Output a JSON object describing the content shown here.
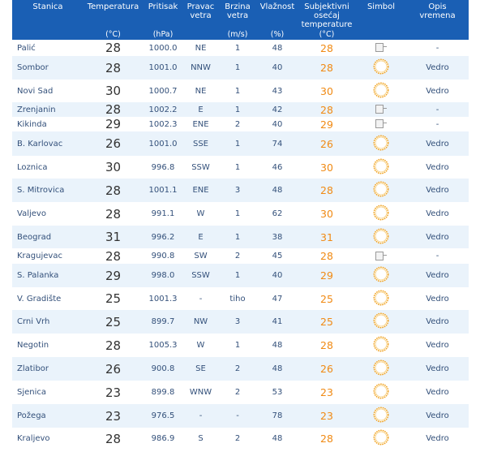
{
  "table": {
    "headers": [
      {
        "lines": [
          "Stanica"
        ],
        "unit": ""
      },
      {
        "lines": [
          "Temperatura"
        ],
        "unit": "(°C)"
      },
      {
        "lines": [
          "Pritisak"
        ],
        "unit": "(hPa)"
      },
      {
        "lines": [
          "Pravac",
          "vetra"
        ],
        "unit": ""
      },
      {
        "lines": [
          "Brzina",
          "vetra"
        ],
        "unit": "(m/s)"
      },
      {
        "lines": [
          "Vlažnost"
        ],
        "unit": "(%)"
      },
      {
        "lines": [
          "Subjektivni",
          "osećaj",
          "temperature"
        ],
        "unit": "(°C)"
      },
      {
        "lines": [
          "Simbol"
        ],
        "unit": ""
      },
      {
        "lines": [
          "Opis",
          "vremena"
        ],
        "unit": ""
      }
    ],
    "rows": [
      {
        "station": "Palić",
        "temp": "28",
        "pressure": "1000.0",
        "wind_dir": "NE",
        "wind_speed": "1",
        "humidity": "48",
        "feel": "28",
        "symbol": "broken-image-icon",
        "desc": "-"
      },
      {
        "station": "Sombor",
        "temp": "28",
        "pressure": "1001.0",
        "wind_dir": "NNW",
        "wind_speed": "1",
        "humidity": "40",
        "feel": "28",
        "symbol": "sun-icon",
        "desc": "Vedro"
      },
      {
        "station": "Novi Sad",
        "temp": "30",
        "pressure": "1000.7",
        "wind_dir": "NE",
        "wind_speed": "1",
        "humidity": "43",
        "feel": "30",
        "symbol": "sun-icon",
        "desc": "Vedro"
      },
      {
        "station": "Zrenjanin",
        "temp": "28",
        "pressure": "1002.2",
        "wind_dir": "E",
        "wind_speed": "1",
        "humidity": "42",
        "feel": "28",
        "symbol": "broken-image-icon",
        "desc": "-"
      },
      {
        "station": "Kikinda",
        "temp": "29",
        "pressure": "1002.3",
        "wind_dir": "ENE",
        "wind_speed": "2",
        "humidity": "40",
        "feel": "29",
        "symbol": "broken-image-icon",
        "desc": "-"
      },
      {
        "station": "B. Karlovac",
        "temp": "26",
        "pressure": "1001.0",
        "wind_dir": "SSE",
        "wind_speed": "1",
        "humidity": "74",
        "feel": "26",
        "symbol": "sun-icon",
        "desc": "Vedro"
      },
      {
        "station": "Loznica",
        "temp": "30",
        "pressure": "996.8",
        "wind_dir": "SSW",
        "wind_speed": "1",
        "humidity": "46",
        "feel": "30",
        "symbol": "sun-icon",
        "desc": "Vedro"
      },
      {
        "station": "S. Mitrovica",
        "temp": "28",
        "pressure": "1001.1",
        "wind_dir": "ENE",
        "wind_speed": "3",
        "humidity": "48",
        "feel": "28",
        "symbol": "sun-icon",
        "desc": "Vedro"
      },
      {
        "station": "Valjevo",
        "temp": "28",
        "pressure": "991.1",
        "wind_dir": "W",
        "wind_speed": "1",
        "humidity": "62",
        "feel": "30",
        "symbol": "sun-icon",
        "desc": "Vedro"
      },
      {
        "station": "Beograd",
        "temp": "31",
        "pressure": "996.2",
        "wind_dir": "E",
        "wind_speed": "1",
        "humidity": "38",
        "feel": "31",
        "symbol": "sun-icon",
        "desc": "Vedro"
      },
      {
        "station": "Kragujevac",
        "temp": "28",
        "pressure": "990.8",
        "wind_dir": "SW",
        "wind_speed": "2",
        "humidity": "45",
        "feel": "28",
        "symbol": "broken-image-icon",
        "desc": "-"
      },
      {
        "station": "S. Palanka",
        "temp": "29",
        "pressure": "998.0",
        "wind_dir": "SSW",
        "wind_speed": "1",
        "humidity": "40",
        "feel": "29",
        "symbol": "sun-icon",
        "desc": "Vedro"
      },
      {
        "station": "V. Gradište",
        "temp": "25",
        "pressure": "1001.3",
        "wind_dir": "-",
        "wind_speed": "tiho",
        "humidity": "47",
        "feel": "25",
        "symbol": "sun-icon",
        "desc": "Vedro"
      },
      {
        "station": "Crni Vrh",
        "temp": "25",
        "pressure": "899.7",
        "wind_dir": "NW",
        "wind_speed": "3",
        "humidity": "41",
        "feel": "25",
        "symbol": "sun-icon",
        "desc": "Vedro"
      },
      {
        "station": "Negotin",
        "temp": "28",
        "pressure": "1005.3",
        "wind_dir": "W",
        "wind_speed": "1",
        "humidity": "48",
        "feel": "28",
        "symbol": "sun-icon",
        "desc": "Vedro"
      },
      {
        "station": "Zlatibor",
        "temp": "26",
        "pressure": "900.8",
        "wind_dir": "SE",
        "wind_speed": "2",
        "humidity": "48",
        "feel": "26",
        "symbol": "sun-icon",
        "desc": "Vedro"
      },
      {
        "station": "Sjenica",
        "temp": "23",
        "pressure": "899.8",
        "wind_dir": "WNW",
        "wind_speed": "2",
        "humidity": "53",
        "feel": "23",
        "symbol": "sun-icon",
        "desc": "Vedro"
      },
      {
        "station": "Požega",
        "temp": "23",
        "pressure": "976.5",
        "wind_dir": "-",
        "wind_speed": "-",
        "humidity": "78",
        "feel": "23",
        "symbol": "sun-icon",
        "desc": "Vedro"
      },
      {
        "station": "Kraljevo",
        "temp": "28",
        "pressure": "986.9",
        "wind_dir": "S",
        "wind_speed": "2",
        "humidity": "48",
        "feel": "28",
        "symbol": "sun-icon",
        "desc": "Vedro"
      }
    ]
  },
  "colors": {
    "header_bg": "#1a5fb4",
    "header_text": "#ffffff",
    "row_alt_bg": "#eaf3fb",
    "feel_text": "#f08a14",
    "sun_stroke": "#f0a020"
  }
}
